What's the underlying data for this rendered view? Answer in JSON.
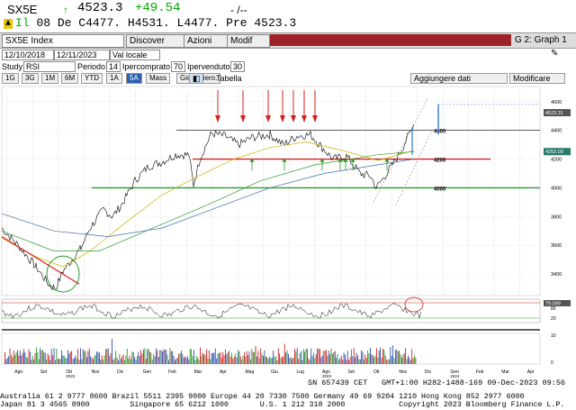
{
  "ticker": {
    "symbol": "SX5E",
    "price": "4523.3",
    "change": "+49.54",
    "dash": "- /--",
    "line2_flag": "Il",
    "line2_text": "08 De",
    "open": "C4477.",
    "high": "H4531.",
    "low": "L4477.",
    "prev": "Pre 4523.3"
  },
  "toolbar": {
    "security": "SX5E Index",
    "discover": "Discover",
    "actions": "Azioni",
    "modify": "Modif",
    "graph": "G 2: Graph 1"
  },
  "settings": {
    "start_date": "12/10/2018",
    "end_date": "12/11/2023",
    "currency": "Val locale",
    "study_label": "Study",
    "study_value": "RSI",
    "period_label": "Periodo",
    "period_value": "14",
    "overbought_label": "Ipercomprato",
    "overbought_value": "70",
    "oversold_label": "Ipervenduto",
    "oversold_value": "30"
  },
  "ranges": [
    "1G",
    "3G",
    "1M",
    "6M",
    "YTD",
    "1A",
    "5A",
    "Mass",
    "Giornaliero."
  ],
  "active_range": "5A",
  "tabella": "Tabella",
  "add_data": "Aggiungere dati",
  "modify_btn": "Modificare",
  "chart_data": {
    "type": "line",
    "y_ticks": [
      3400,
      3600,
      3800,
      4000,
      4200,
      4400,
      4600
    ],
    "y_range": [
      3250,
      4680
    ],
    "last_label": "4523.31",
    "ma_label": "4252.09",
    "levels": [
      {
        "value": 4400,
        "label": "4400",
        "color": "#000000"
      },
      {
        "value": 4200,
        "label": "4200",
        "color": "#d62020"
      },
      {
        "value": 4000,
        "label": "4000",
        "color": "#2a9a2a"
      }
    ],
    "months": [
      "Ago",
      "Set",
      "Ott",
      "Nov",
      "Dic",
      "Gen",
      "Feb",
      "Mar",
      "Apr",
      "Mag",
      "Giu",
      "Lug",
      "Ago",
      "Set",
      "Ott",
      "Nov",
      "Dic",
      "Gen",
      "Feb",
      "Mar",
      "Apr"
    ],
    "years": [
      "2022",
      "2023",
      "2024"
    ],
    "rsi_label": "79.099",
    "rsi_ticks": [
      "80",
      "20"
    ],
    "volume_ticks": [
      "10",
      "0"
    ],
    "colors": {
      "price": "#000000",
      "ma_long": "#2a9a2a",
      "ma_mid": "#c8b400",
      "ma_short": "#3a6fb0",
      "arrow_down": "#d62020",
      "arrow_up": "#2a9a2a"
    }
  },
  "status": {
    "sn": "SN 657439 CET",
    "gmt": "GMT+1:00 H282-1488-169 09-Dec-2023 09:56"
  },
  "footer": {
    "line1": "Australia 61 2 9777 8600 Brazil 5511 2395 9000 Europe 44 20 7330 7500 Germany 49 69 9204 1210 Hong Kong 852 2977 6000",
    "line2": "Japan 81 3 4565 8900         Singapore 65 6212 1000       U.S. 1 212 318 2000            Copyright 2023 Bloomberg Finance L.P."
  }
}
